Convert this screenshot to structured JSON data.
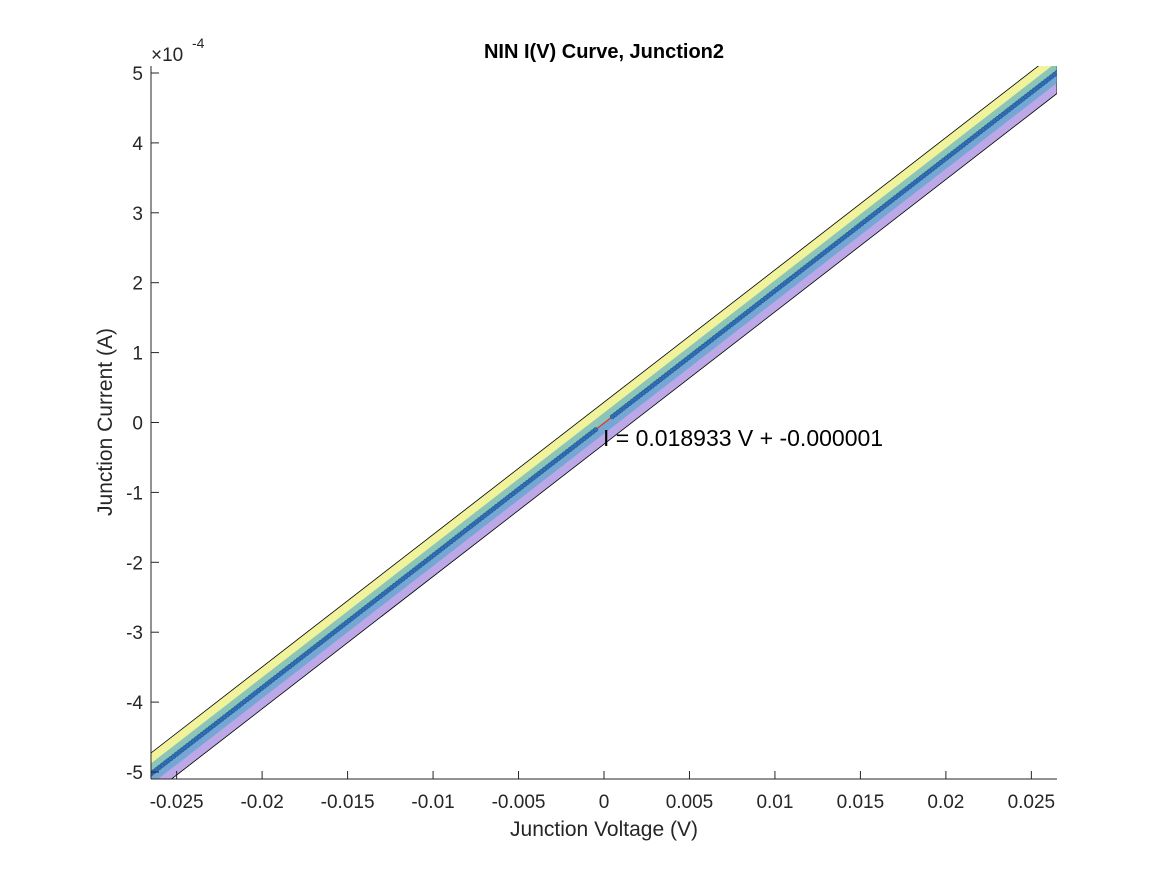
{
  "chart_data": {
    "type": "scatter",
    "title": "NIN I(V) Curve, Junction2",
    "xlabel": "Junction Voltage (V)",
    "ylabel": "Junction Current (A)",
    "xlim": [
      -0.0265,
      0.0265
    ],
    "ylim": [
      -5.1,
      5.1
    ],
    "y_exponent_label": "×10",
    "y_exponent_power": "-4",
    "x_ticks": [
      -0.025,
      -0.02,
      -0.015,
      -0.01,
      -0.005,
      0,
      0.005,
      0.01,
      0.015,
      0.02,
      0.025
    ],
    "x_tick_labels": [
      "-0.025",
      "-0.02",
      "-0.015",
      "-0.01",
      "-0.005",
      "0",
      "0.005",
      "0.01",
      "0.015",
      "0.02",
      "0.025"
    ],
    "y_ticks": [
      -5,
      -4,
      -3,
      -2,
      -1,
      0,
      1,
      2,
      3,
      4,
      5
    ],
    "y_tick_labels": [
      "-5",
      "-4",
      "-3",
      "-2",
      "-1",
      "0",
      "1",
      "2",
      "3",
      "4",
      "5"
    ],
    "fit": {
      "slope": 0.018933,
      "intercept": -1e-06
    },
    "annotation": "I = 0.018933 V + -0.000001",
    "band_offsets": [
      0.3,
      -0.3,
      0.15,
      -0.15
    ],
    "grid": false,
    "colors": {
      "markers": "#2f6fb5",
      "marker_edge": "#1f4f8a",
      "fit_line": "#e8322d",
      "band_upper": "#e5e84a",
      "band_lower": "#6b3cc9",
      "band_outline": "#000000",
      "axes": "#262626"
    }
  }
}
